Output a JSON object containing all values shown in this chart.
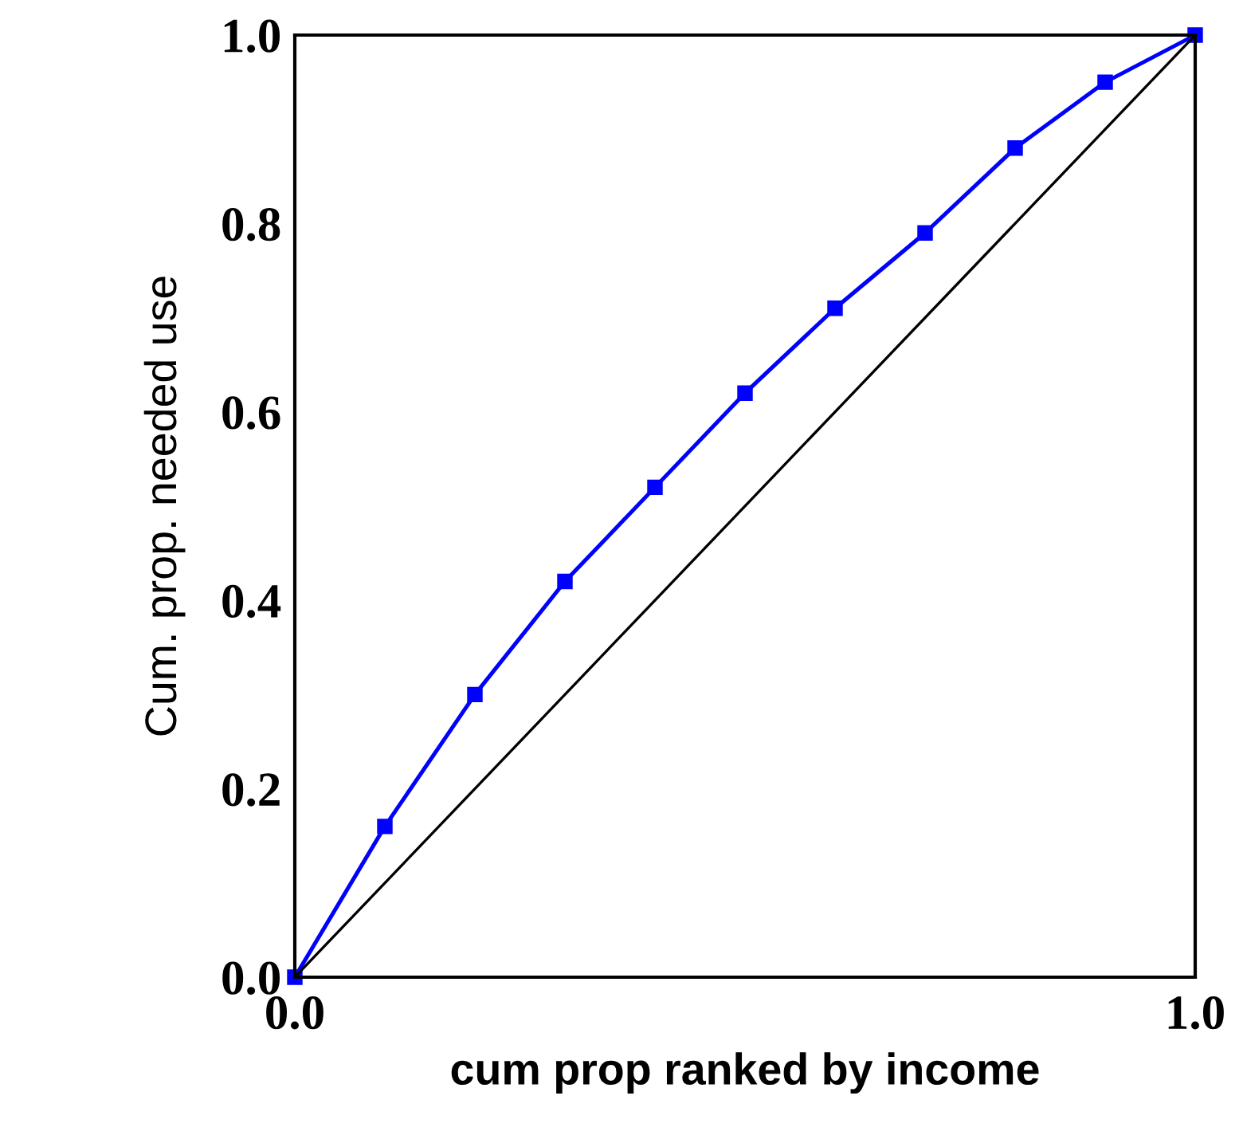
{
  "chart_data": {
    "type": "line",
    "xlabel": "cum prop ranked by income",
    "ylabel": "Cum. prop. needed use",
    "series": [
      {
        "color": "#0000ff",
        "marker": "square",
        "x": [
          0,
          0.1,
          0.2,
          0.3,
          0.4,
          0.5,
          0.6,
          0.7,
          0.8,
          0.9,
          1.0
        ],
        "values": [
          0,
          0.16,
          0.3,
          0.42,
          0.52,
          0.62,
          0.71,
          0.79,
          0.88,
          0.95,
          1.0
        ]
      },
      {
        "color": "#000000",
        "marker": "none",
        "x": [
          0,
          1.0
        ],
        "values": [
          0,
          1.0
        ]
      }
    ],
    "xlim": [
      0,
      1.0
    ],
    "ylim": [
      0,
      1.0
    ],
    "xticks": [
      {
        "value": 0,
        "label": "0.0"
      },
      {
        "value": 1.0,
        "label": "1.0"
      }
    ],
    "yticks": [
      {
        "value": 0,
        "label": "0.0"
      },
      {
        "value": 0.2,
        "label": "0.2"
      },
      {
        "value": 0.4,
        "label": "0.4"
      },
      {
        "value": 0.6,
        "label": "0.6"
      },
      {
        "value": 0.8,
        "label": "0.8"
      },
      {
        "value": 1.0,
        "label": "1.0"
      }
    ],
    "grid": false,
    "legend": false
  }
}
